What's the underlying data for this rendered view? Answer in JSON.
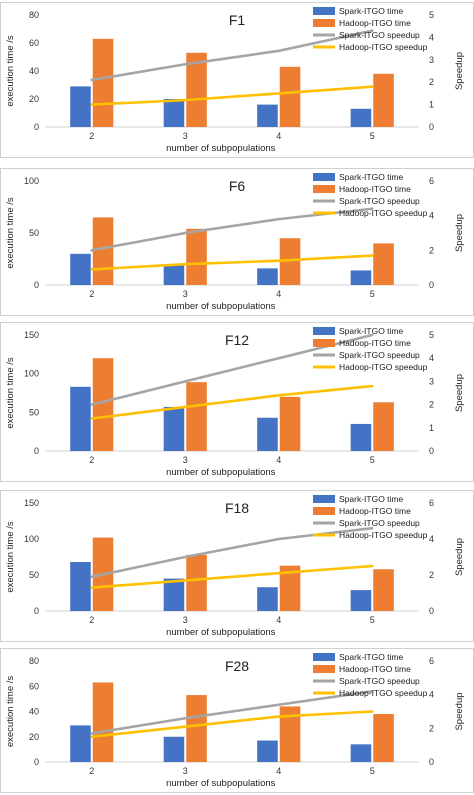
{
  "colors": {
    "spark_time": "#4472c4",
    "hadoop_time": "#ed7d31",
    "spark_speedup": "#a5a5a5",
    "hadoop_speedup": "#ffc000"
  },
  "chart_data": [
    {
      "type": "bar",
      "title": "F1",
      "categories": [
        "2",
        "3",
        "4",
        "5"
      ],
      "xlabel": "number of subpopulations",
      "ylabel": "execution time /s",
      "ylabel_right": "Speedup",
      "ylim": [
        0,
        80
      ],
      "yticks": [
        0,
        20,
        40,
        60,
        80
      ],
      "ylim_right": [
        0,
        5
      ],
      "yticks_right": [
        0,
        1,
        2,
        3,
        4,
        5
      ],
      "series": [
        {
          "name": "Spark-ITGO time",
          "kind": "bar",
          "axis": "left",
          "values": [
            29,
            20,
            16,
            13
          ]
        },
        {
          "name": "Hadoop-ITGO time",
          "kind": "bar",
          "axis": "left",
          "values": [
            63,
            53,
            43,
            38
          ]
        },
        {
          "name": "Spark-ITGO speedup",
          "kind": "line",
          "axis": "right",
          "values": [
            2.1,
            2.8,
            3.4,
            4.3
          ]
        },
        {
          "name": "Hadoop-ITGO speedup",
          "kind": "line",
          "axis": "right",
          "values": [
            1.0,
            1.2,
            1.5,
            1.8
          ]
        }
      ]
    },
    {
      "type": "bar",
      "title": "F6",
      "categories": [
        "2",
        "3",
        "4",
        "5"
      ],
      "xlabel": "number of subpopulations",
      "ylabel": "execution time /s",
      "ylabel_right": "Speedup",
      "ylim": [
        0,
        100
      ],
      "yticks": [
        0,
        50,
        100
      ],
      "ylim_right": [
        0,
        6
      ],
      "yticks_right": [
        0,
        2,
        4,
        6
      ],
      "series": [
        {
          "name": "Spark-ITGO time",
          "kind": "bar",
          "axis": "left",
          "values": [
            30,
            19,
            16,
            14
          ]
        },
        {
          "name": "Hadoop-ITGO time",
          "kind": "bar",
          "axis": "left",
          "values": [
            65,
            54,
            45,
            40
          ]
        },
        {
          "name": "Spark-ITGO speedup",
          "kind": "line",
          "axis": "right",
          "values": [
            2.0,
            3.0,
            3.8,
            4.4
          ]
        },
        {
          "name": "Hadoop-ITGO speedup",
          "kind": "line",
          "axis": "right",
          "values": [
            0.9,
            1.2,
            1.4,
            1.7
          ]
        }
      ]
    },
    {
      "type": "bar",
      "title": "F12",
      "categories": [
        "2",
        "3",
        "4",
        "5"
      ],
      "xlabel": "number of subpopulations",
      "ylabel": "execution time /s",
      "ylabel_right": "Speedup",
      "ylim": [
        0,
        150
      ],
      "yticks": [
        0,
        50,
        100,
        150
      ],
      "ylim_right": [
        0,
        5
      ],
      "yticks_right": [
        0,
        1,
        2,
        3,
        4,
        5
      ],
      "series": [
        {
          "name": "Spark-ITGO time",
          "kind": "bar",
          "axis": "left",
          "values": [
            83,
            57,
            43,
            35
          ]
        },
        {
          "name": "Hadoop-ITGO time",
          "kind": "bar",
          "axis": "left",
          "values": [
            120,
            89,
            70,
            63
          ]
        },
        {
          "name": "Spark-ITGO speedup",
          "kind": "line",
          "axis": "right",
          "values": [
            2.0,
            3.0,
            4.0,
            5.0
          ]
        },
        {
          "name": "Hadoop-ITGO speedup",
          "kind": "line",
          "axis": "right",
          "values": [
            1.4,
            1.9,
            2.4,
            2.8
          ]
        }
      ]
    },
    {
      "type": "bar",
      "title": "F18",
      "categories": [
        "2",
        "3",
        "4",
        "5"
      ],
      "xlabel": "number of subpopulations",
      "ylabel": "execution time /s",
      "ylabel_right": "Speedup",
      "ylim": [
        0,
        150
      ],
      "yticks": [
        0,
        50,
        100,
        150
      ],
      "ylim_right": [
        0,
        6
      ],
      "yticks_right": [
        0,
        2,
        4,
        6
      ],
      "series": [
        {
          "name": "Spark-ITGO time",
          "kind": "bar",
          "axis": "left",
          "values": [
            68,
            45,
            33,
            29
          ]
        },
        {
          "name": "Hadoop-ITGO time",
          "kind": "bar",
          "axis": "left",
          "values": [
            102,
            78,
            63,
            58
          ]
        },
        {
          "name": "Spark-ITGO speedup",
          "kind": "line",
          "axis": "right",
          "values": [
            1.9,
            3.0,
            4.0,
            4.6
          ]
        },
        {
          "name": "Hadoop-ITGO speedup",
          "kind": "line",
          "axis": "right",
          "values": [
            1.3,
            1.7,
            2.1,
            2.5
          ]
        }
      ]
    },
    {
      "type": "bar",
      "title": "F28",
      "categories": [
        "2",
        "3",
        "4",
        "5"
      ],
      "xlabel": "number of subpopulations",
      "ylabel": "execution time /s",
      "ylabel_right": "Speedup",
      "ylim": [
        0,
        80
      ],
      "yticks": [
        0,
        20,
        40,
        60,
        80
      ],
      "ylim_right": [
        0,
        6
      ],
      "yticks_right": [
        0,
        2,
        4,
        6
      ],
      "series": [
        {
          "name": "Spark-ITGO time",
          "kind": "bar",
          "axis": "left",
          "values": [
            29,
            20,
            17,
            14
          ]
        },
        {
          "name": "Hadoop-ITGO time",
          "kind": "bar",
          "axis": "left",
          "values": [
            63,
            53,
            44,
            38
          ]
        },
        {
          "name": "Spark-ITGO speedup",
          "kind": "line",
          "axis": "right",
          "values": [
            1.7,
            2.6,
            3.4,
            4.2
          ]
        },
        {
          "name": "Hadoop-ITGO speedup",
          "kind": "line",
          "axis": "right",
          "values": [
            1.5,
            2.1,
            2.7,
            3.0
          ]
        }
      ]
    }
  ]
}
